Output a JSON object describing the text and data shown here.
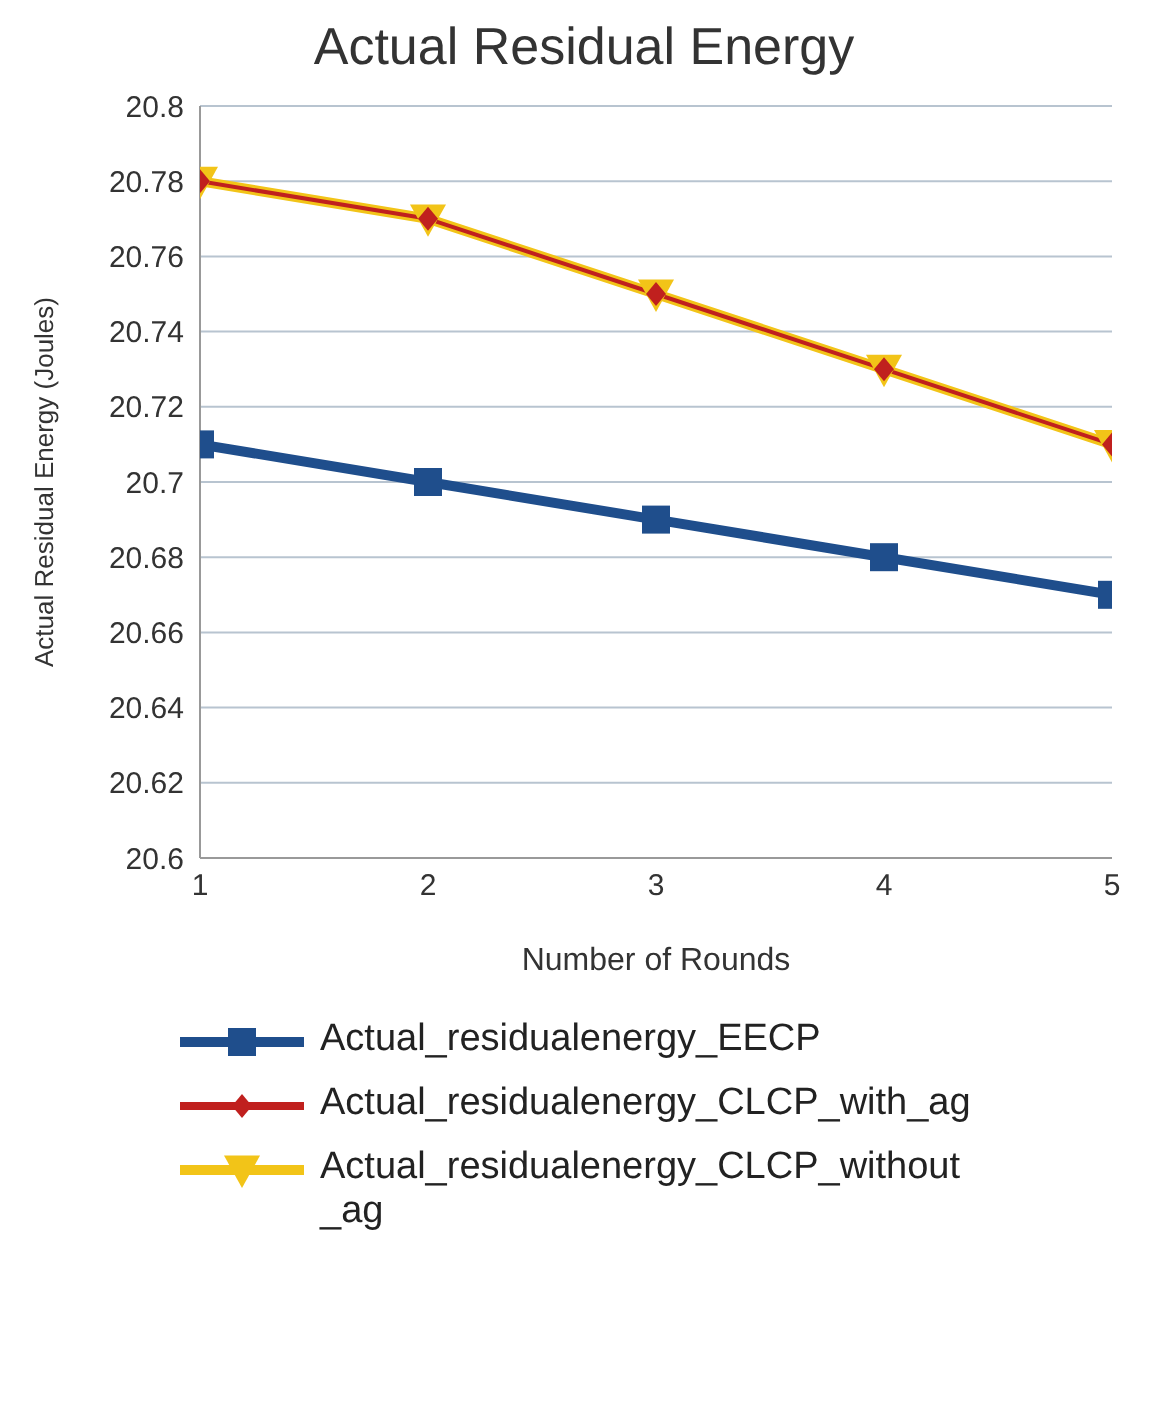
{
  "chart_data": {
    "type": "line",
    "title": "Actual Residual Energy",
    "xlabel": "Number of Rounds",
    "ylabel": "Actual Residual Energy (Joules)",
    "x": [
      1,
      2,
      3,
      4,
      5
    ],
    "xlim": [
      1,
      5
    ],
    "xticks": [
      1,
      2,
      3,
      4,
      5
    ],
    "ylim": [
      20.6,
      20.8
    ],
    "yticks": [
      20.6,
      20.62,
      20.64,
      20.66,
      20.68,
      20.7,
      20.72,
      20.74,
      20.76,
      20.78,
      20.8
    ],
    "grid": "y",
    "legend": "bottom",
    "line_style": "solid",
    "series": [
      {
        "name": "Actual_residualenergy_EECP",
        "color": "#1f4e8c",
        "marker": "square",
        "values": [
          20.71,
          20.7,
          20.69,
          20.68,
          20.67
        ]
      },
      {
        "name": "Actual_residualenergy_CLCP_with_ag",
        "color": "#c0201e",
        "marker": "diamond",
        "values": [
          20.78,
          20.77,
          20.75,
          20.73,
          20.71
        ]
      },
      {
        "name": "Actual_residualenergy_CLCP_without_ag",
        "color": "#f2c418",
        "marker": "triangle",
        "values": [
          20.78,
          20.77,
          20.75,
          20.73,
          20.71
        ]
      }
    ]
  }
}
